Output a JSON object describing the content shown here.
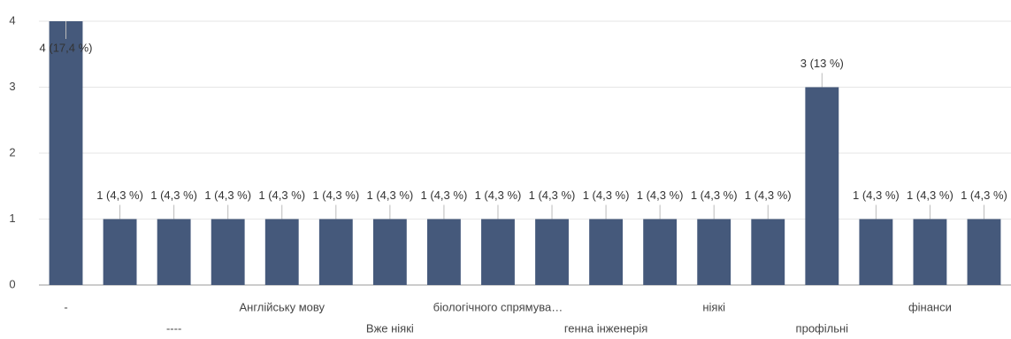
{
  "chart_data": {
    "type": "bar",
    "categories": [
      "-",
      null,
      "----",
      null,
      "Англійську мову",
      null,
      "Вже ніякі",
      null,
      "біологічного спрямува…",
      null,
      "генна інженерія",
      null,
      "ніякі",
      null,
      "профільні",
      null,
      "фінанси",
      null
    ],
    "values": [
      4,
      1,
      1,
      1,
      1,
      1,
      1,
      1,
      1,
      1,
      1,
      1,
      1,
      1,
      3,
      1,
      1,
      1
    ],
    "value_labels": [
      "4 (17,4 %)",
      "1 (4,3 %)",
      "1 (4,3 %)",
      "1 (4,3 %)",
      "1 (4,3 %)",
      "1 (4,3 %)",
      "1 (4,3 %)",
      "1 (4,3 %)",
      "1 (4,3 %)",
      "1 (4,3 %)",
      "1 (4,3 %)",
      "1 (4,3 %)",
      "1 (4,3 %)",
      "1 (4,3 %)",
      "3 (13 %)",
      "1 (4,3 %)",
      "1 (4,3 %)",
      "1 (4,3 %)"
    ],
    "color": "#45597b",
    "ylim": [
      0,
      4
    ],
    "yticks": [
      0,
      1,
      2,
      3,
      4
    ],
    "grid": true
  }
}
